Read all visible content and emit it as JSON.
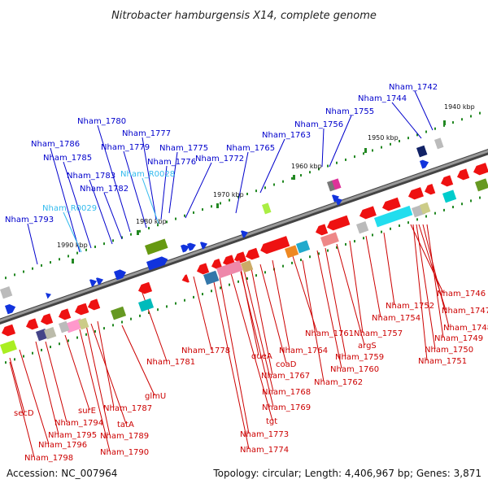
{
  "title": "Nitrobacter hamburgensis X14, complete genome",
  "footer": {
    "accession": "Accession: NC_007964",
    "summary": "Topology: circular; Length: 4,406,967 bp; Genes: 3,871"
  },
  "colors": {
    "forward_label": "#0000cc",
    "rna_label": "#33bbee",
    "reverse_label": "#cc0000",
    "backbone": "#777777"
  },
  "kbp_ticks": [
    "1940 kbp",
    "1950 kbp",
    "1960 kbp",
    "1970 kbp",
    "1980 kbp",
    "1990 kbp"
  ],
  "forward_labels": [
    "Nham_1742",
    "Nham_1744",
    "Nham_1755",
    "Nham_1756",
    "Nham_1763",
    "Nham_1765",
    "Nham_1772",
    "Nham_1775",
    "Nham_1776",
    "Nham_1777",
    "Nham_1779",
    "Nham_1780",
    "Nham_R0028",
    "Nham_1782",
    "Nham_1783",
    "Nham_1785",
    "Nham_1786",
    "Nham_R0029",
    "Nham_1793"
  ],
  "reverse_labels": [
    "Nham_1746",
    "Nham_1747",
    "Nham_1748",
    "Nham_1749",
    "Nham_1750",
    "Nham_1751",
    "Nham_1752",
    "Nham_1754",
    "Nham_1757",
    "argS",
    "Nham_1759",
    "Nham_1760",
    "Nham_1761",
    "Nham_1762",
    "Nham_1764",
    "coaD",
    "Nham_1767",
    "queA",
    "Nham_1768",
    "Nham_1769",
    "Nham_1778",
    "tgt",
    "Nham_1773",
    "Nham_1774",
    "Nham_1781",
    "glmU",
    "Nham_1787",
    "tatA",
    "Nham_1789",
    "Nham_1790",
    "surE",
    "Nham_1794",
    "Nham_1795",
    "secD",
    "Nham_1796",
    "Nham_1798"
  ]
}
